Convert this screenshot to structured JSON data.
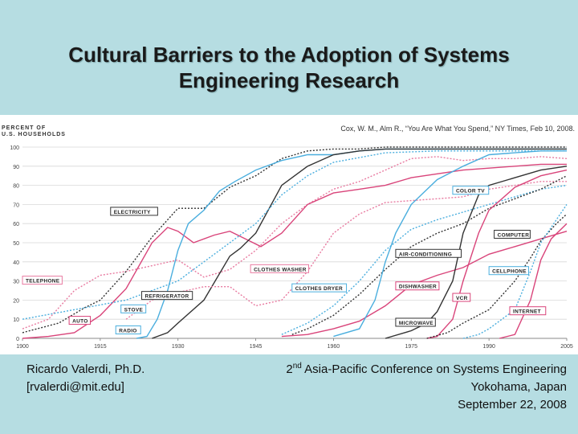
{
  "slide": {
    "title_line1": "Cultural Barriers to the Adoption of Systems",
    "title_line2": "Engineering Research",
    "citation": "Cox, W. M., Alm R., “You Are What You Spend,” NY Times, Feb 10, 2008.",
    "footer_left_name": "Ricardo Valerdi, Ph.D.",
    "footer_left_email": "[rvalerdi@mit.edu]",
    "footer_right_ordinal": "2",
    "footer_right_sup": "nd",
    "footer_right_conf": " Asia-Pacific Conference on Systems Engineering",
    "footer_right_location": "Yokohama, Japan",
    "footer_right_date": "September 22, 2008"
  },
  "chart_data": {
    "type": "line",
    "ylabel_line1": "PERCENT OF",
    "ylabel_line2": "U.S. HOUSEHOLDS",
    "xlim": [
      1900,
      2005
    ],
    "ylim": [
      0,
      100
    ],
    "x_ticks": [
      1900,
      1915,
      1930,
      1945,
      1960,
      1975,
      1990,
      2005
    ],
    "y_ticks": [
      0,
      10,
      20,
      30,
      40,
      50,
      60,
      70,
      80,
      90,
      100
    ],
    "colors": {
      "red": "#d9447a",
      "pink": "#e87aa0",
      "blue": "#4aaede",
      "black": "#333333",
      "gray": "#8a8a8a"
    },
    "series": [
      {
        "name": "TELEPHONE",
        "color": "#e87aa0",
        "dash": true,
        "label_at": [
          1900,
          30
        ],
        "points": [
          [
            1900,
            5
          ],
          [
            1905,
            10
          ],
          [
            1910,
            25
          ],
          [
            1915,
            33
          ],
          [
            1920,
            35
          ],
          [
            1925,
            38
          ],
          [
            1930,
            41
          ],
          [
            1935,
            32
          ],
          [
            1940,
            36
          ],
          [
            1945,
            46
          ],
          [
            1950,
            60
          ],
          [
            1955,
            70
          ],
          [
            1960,
            78
          ],
          [
            1965,
            82
          ],
          [
            1970,
            88
          ],
          [
            1975,
            94
          ],
          [
            1980,
            95
          ],
          [
            1985,
            93
          ],
          [
            1990,
            94
          ],
          [
            1995,
            94
          ],
          [
            2000,
            95
          ],
          [
            2005,
            94
          ]
        ]
      },
      {
        "name": "AUTO",
        "color": "#d9447a",
        "dash": false,
        "label_at": [
          1909,
          9
        ],
        "points": [
          [
            1900,
            0
          ],
          [
            1905,
            1
          ],
          [
            1910,
            3
          ],
          [
            1915,
            12
          ],
          [
            1920,
            26
          ],
          [
            1925,
            50
          ],
          [
            1928,
            58
          ],
          [
            1930,
            56
          ],
          [
            1933,
            50
          ],
          [
            1937,
            54
          ],
          [
            1940,
            56
          ],
          [
            1943,
            52
          ],
          [
            1946,
            48
          ],
          [
            1950,
            55
          ],
          [
            1955,
            70
          ],
          [
            1960,
            76
          ],
          [
            1965,
            78
          ],
          [
            1970,
            80
          ],
          [
            1975,
            84
          ],
          [
            1980,
            86
          ],
          [
            1985,
            88
          ],
          [
            1990,
            89
          ],
          [
            1995,
            90
          ],
          [
            2000,
            91
          ],
          [
            2005,
            91
          ]
        ]
      },
      {
        "name": "ELECTRICITY",
        "color": "#333333",
        "dash": true,
        "label_at": [
          1917,
          66
        ],
        "points": [
          [
            1900,
            3
          ],
          [
            1907,
            8
          ],
          [
            1912,
            16
          ],
          [
            1915,
            20
          ],
          [
            1920,
            35
          ],
          [
            1925,
            53
          ],
          [
            1930,
            68
          ],
          [
            1935,
            68
          ],
          [
            1940,
            79
          ],
          [
            1945,
            85
          ],
          [
            1950,
            94
          ],
          [
            1955,
            98
          ],
          [
            1960,
            99
          ],
          [
            1965,
            99
          ],
          [
            1970,
            100
          ],
          [
            2005,
            100
          ]
        ]
      },
      {
        "name": "RADIO",
        "color": "#4aaede",
        "dash": false,
        "label_at": [
          1918,
          4
        ],
        "points": [
          [
            1922,
            0
          ],
          [
            1924,
            1
          ],
          [
            1926,
            10
          ],
          [
            1928,
            25
          ],
          [
            1930,
            46
          ],
          [
            1932,
            60
          ],
          [
            1935,
            67
          ],
          [
            1938,
            77
          ],
          [
            1941,
            82
          ],
          [
            1945,
            88
          ],
          [
            1950,
            93
          ],
          [
            1955,
            96
          ],
          [
            1960,
            96
          ],
          [
            1965,
            98
          ],
          [
            1970,
            99
          ],
          [
            1975,
            99
          ],
          [
            1980,
            99
          ],
          [
            1990,
            99
          ],
          [
            2005,
            99
          ]
        ]
      },
      {
        "name": "REFRIGERATOR",
        "color": "#333333",
        "dash": false,
        "label_at": [
          1923,
          22
        ],
        "points": [
          [
            1925,
            0
          ],
          [
            1928,
            3
          ],
          [
            1930,
            8
          ],
          [
            1935,
            20
          ],
          [
            1940,
            43
          ],
          [
            1942,
            47
          ],
          [
            1945,
            55
          ],
          [
            1950,
            80
          ],
          [
            1955,
            90
          ],
          [
            1960,
            96
          ],
          [
            1965,
            98
          ],
          [
            1970,
            99
          ],
          [
            1980,
            99
          ],
          [
            2005,
            99
          ]
        ]
      },
      {
        "name": "STOVE",
        "color": "#4aaede",
        "dash": true,
        "label_at": [
          1919,
          15
        ],
        "points": [
          [
            1900,
            10
          ],
          [
            1910,
            15
          ],
          [
            1920,
            20
          ],
          [
            1930,
            30
          ],
          [
            1935,
            40
          ],
          [
            1940,
            50
          ],
          [
            1945,
            60
          ],
          [
            1950,
            75
          ],
          [
            1955,
            85
          ],
          [
            1960,
            92
          ],
          [
            1970,
            97
          ],
          [
            1980,
            98
          ],
          [
            2005,
            98
          ]
        ]
      },
      {
        "name": "CLOTHES WASHER",
        "color": "#e87aa0",
        "dash": true,
        "label_at": [
          1944,
          36
        ],
        "points": [
          [
            1920,
            10
          ],
          [
            1925,
            20
          ],
          [
            1930,
            24
          ],
          [
            1935,
            27
          ],
          [
            1940,
            27
          ],
          [
            1945,
            17
          ],
          [
            1950,
            20
          ],
          [
            1955,
            35
          ],
          [
            1960,
            55
          ],
          [
            1965,
            65
          ],
          [
            1970,
            71
          ],
          [
            1975,
            72
          ],
          [
            1980,
            73
          ],
          [
            1985,
            74
          ],
          [
            1990,
            78
          ],
          [
            1995,
            80
          ],
          [
            2000,
            82
          ],
          [
            2005,
            82
          ]
        ]
      },
      {
        "name": "CLOTHES DRYER",
        "color": "#4aaede",
        "dash": true,
        "label_at": [
          1952,
          26
        ],
        "points": [
          [
            1950,
            2
          ],
          [
            1955,
            8
          ],
          [
            1960,
            17
          ],
          [
            1965,
            30
          ],
          [
            1970,
            46
          ],
          [
            1975,
            57
          ],
          [
            1980,
            62
          ],
          [
            1985,
            66
          ],
          [
            1990,
            70
          ],
          [
            1995,
            74
          ],
          [
            2000,
            78
          ],
          [
            2005,
            80
          ]
        ]
      },
      {
        "name": "DISHWASHER",
        "color": "#d9447a",
        "dash": false,
        "label_at": [
          1972,
          27
        ],
        "points": [
          [
            1950,
            1
          ],
          [
            1955,
            2
          ],
          [
            1960,
            5
          ],
          [
            1965,
            9
          ],
          [
            1970,
            17
          ],
          [
            1975,
            28
          ],
          [
            1980,
            33
          ],
          [
            1985,
            37
          ],
          [
            1990,
            44
          ],
          [
            1995,
            48
          ],
          [
            2000,
            52
          ],
          [
            2005,
            56
          ]
        ]
      },
      {
        "name": "AIR-CONDITIONING",
        "color": "#333333",
        "dash": true,
        "label_at": [
          1972,
          44
        ],
        "points": [
          [
            1952,
            2
          ],
          [
            1955,
            5
          ],
          [
            1960,
            12
          ],
          [
            1965,
            23
          ],
          [
            1970,
            36
          ],
          [
            1975,
            48
          ],
          [
            1980,
            55
          ],
          [
            1985,
            60
          ],
          [
            1990,
            68
          ],
          [
            1995,
            73
          ],
          [
            2000,
            78
          ],
          [
            2005,
            85
          ]
        ]
      },
      {
        "name": "COLOR TV",
        "color": "#4aaede",
        "dash": false,
        "label_at": [
          1983,
          77
        ],
        "points": [
          [
            1960,
            1
          ],
          [
            1965,
            5
          ],
          [
            1968,
            20
          ],
          [
            1970,
            40
          ],
          [
            1972,
            55
          ],
          [
            1975,
            70
          ],
          [
            1980,
            83
          ],
          [
            1985,
            90
          ],
          [
            1990,
            96
          ],
          [
            1995,
            97
          ],
          [
            2000,
            98
          ],
          [
            2005,
            98
          ]
        ]
      },
      {
        "name": "MICROWAVE",
        "color": "#333333",
        "dash": false,
        "label_at": [
          1972,
          8
        ],
        "points": [
          [
            1970,
            0
          ],
          [
            1975,
            4
          ],
          [
            1978,
            8
          ],
          [
            1980,
            14
          ],
          [
            1983,
            30
          ],
          [
            1985,
            55
          ],
          [
            1988,
            75
          ],
          [
            1990,
            80
          ],
          [
            1995,
            84
          ],
          [
            2000,
            88
          ],
          [
            2005,
            90
          ]
        ]
      },
      {
        "name": "VCR",
        "color": "#d9447a",
        "dash": false,
        "label_at": [
          1983,
          21
        ],
        "points": [
          [
            1978,
            0
          ],
          [
            1980,
            1
          ],
          [
            1983,
            10
          ],
          [
            1985,
            30
          ],
          [
            1988,
            55
          ],
          [
            1990,
            67
          ],
          [
            1995,
            79
          ],
          [
            2000,
            85
          ],
          [
            2005,
            88
          ]
        ]
      },
      {
        "name": "COMPUTER",
        "color": "#333333",
        "dash": true,
        "label_at": [
          1991,
          54
        ],
        "points": [
          [
            1978,
            0
          ],
          [
            1982,
            3
          ],
          [
            1985,
            8
          ],
          [
            1990,
            15
          ],
          [
            1995,
            30
          ],
          [
            1998,
            42
          ],
          [
            2000,
            51
          ],
          [
            2003,
            60
          ],
          [
            2005,
            65
          ]
        ]
      },
      {
        "name": "CELLPHONE",
        "color": "#4aaede",
        "dash": true,
        "label_at": [
          1990,
          35
        ],
        "points": [
          [
            1985,
            0
          ],
          [
            1988,
            2
          ],
          [
            1990,
            5
          ],
          [
            1995,
            15
          ],
          [
            1998,
            35
          ],
          [
            2000,
            50
          ],
          [
            2003,
            62
          ],
          [
            2005,
            70
          ]
        ]
      },
      {
        "name": "INTERNET",
        "color": "#d9447a",
        "dash": false,
        "label_at": [
          1994,
          14
        ],
        "points": [
          [
            1992,
            0
          ],
          [
            1995,
            2
          ],
          [
            1998,
            20
          ],
          [
            2000,
            41
          ],
          [
            2002,
            52
          ],
          [
            2005,
            60
          ]
        ]
      }
    ]
  }
}
